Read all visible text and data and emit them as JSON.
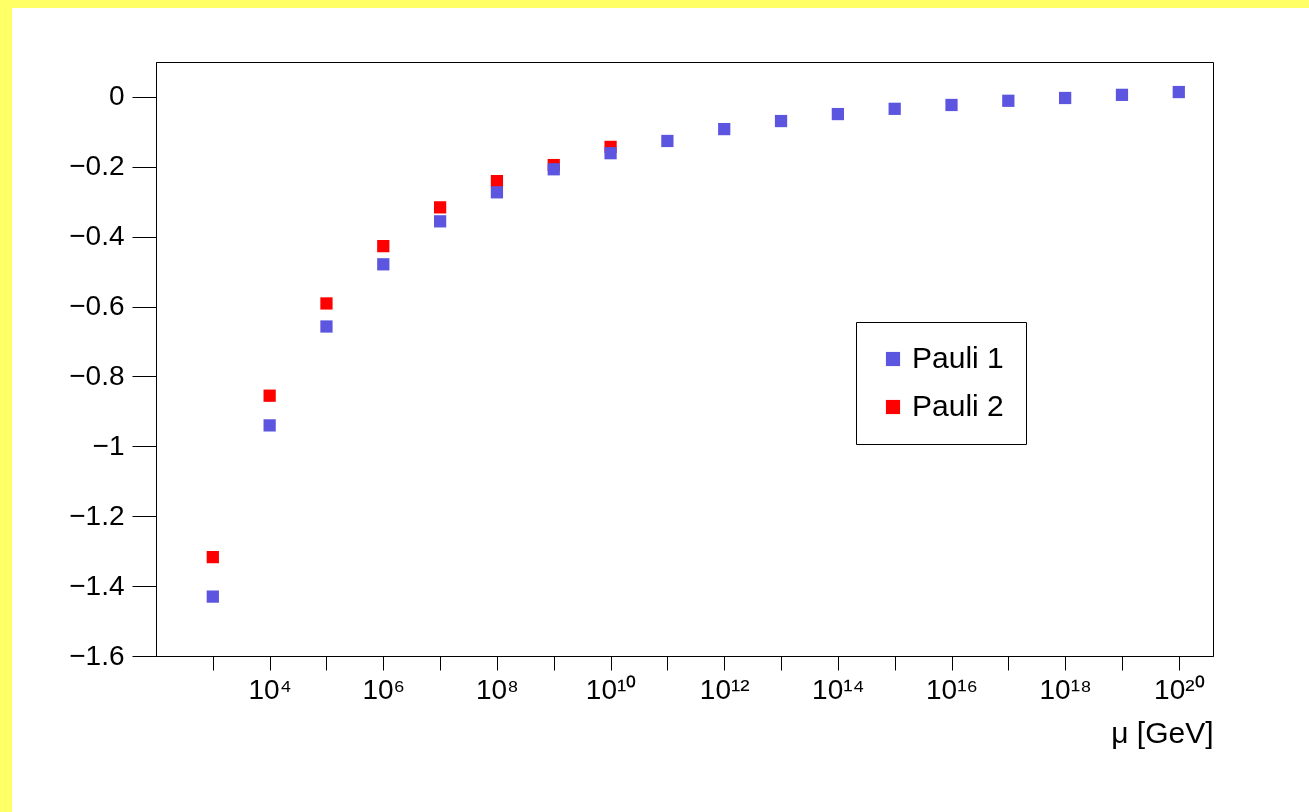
{
  "chart_data": {
    "type": "scatter",
    "xlabel": "μ [GeV]",
    "x": [
      1000.0,
      10000.0,
      100000.0,
      1000000.0,
      10000000.0,
      100000000.0,
      1000000000.0,
      10000000000.0,
      100000000000.0,
      1000000000000.0,
      10000000000000.0,
      100000000000000.0,
      1000000000000000.0,
      1e+16,
      1e+17,
      1e+18,
      1e+19,
      1e+20
    ],
    "series": [
      {
        "name": "Pauli 1",
        "color": "#5b55e0",
        "values": [
          -1.43,
          -0.94,
          -0.657,
          -0.479,
          -0.356,
          -0.273,
          -0.207,
          -0.161,
          -0.126,
          -0.092,
          -0.069,
          -0.049,
          -0.034,
          -0.023,
          -0.011,
          -0.003,
          0.006,
          0.014
        ]
      },
      {
        "name": "Pauli 2",
        "color": "#ff0000",
        "values": [
          -1.317,
          -0.855,
          -0.591,
          -0.427,
          -0.316,
          -0.241,
          -0.195,
          -0.143,
          null,
          null,
          null,
          null,
          null,
          null,
          null,
          null,
          null,
          null
        ]
      }
    ],
    "log": "x",
    "xlim": [
      100,
      4e+20
    ],
    "xticks": [
      {
        "value": 1000.0,
        "label": null
      },
      {
        "value": 10000.0,
        "label": "10⁴"
      },
      {
        "value": 100000.0,
        "label": null
      },
      {
        "value": 1000000.0,
        "label": "10⁶"
      },
      {
        "value": 10000000.0,
        "label": null
      },
      {
        "value": 100000000.0,
        "label": "10⁸"
      },
      {
        "value": 1000000000.0,
        "label": null
      },
      {
        "value": 10000000000.0,
        "label": "10¹⁰"
      },
      {
        "value": 100000000000.0,
        "label": null
      },
      {
        "value": 1000000000000.0,
        "label": "10¹²"
      },
      {
        "value": 10000000000000.0,
        "label": null
      },
      {
        "value": 100000000000000.0,
        "label": "10¹⁴"
      },
      {
        "value": 1000000000000000.0,
        "label": null
      },
      {
        "value": 1e+16,
        "label": "10¹⁶"
      },
      {
        "value": 1e+17,
        "label": null
      },
      {
        "value": 1e+18,
        "label": "10¹⁸"
      },
      {
        "value": 1e+19,
        "label": null
      },
      {
        "value": 1e+20,
        "label": "10²⁰"
      }
    ],
    "ylim": [
      -1.6,
      0.1
    ],
    "yticks": [
      {
        "value": -1.6,
        "label": "−1.6"
      },
      {
        "value": -1.4,
        "label": "−1.4"
      },
      {
        "value": -1.2,
        "label": "−1.2"
      },
      {
        "value": -1,
        "label": "−1"
      },
      {
        "value": -0.8,
        "label": "−0.8"
      },
      {
        "value": -0.6,
        "label": "−0.6"
      },
      {
        "value": -0.4,
        "label": "−0.4"
      },
      {
        "value": -0.2,
        "label": "−0.2"
      },
      0
    ],
    "grid": false,
    "legend": "right",
    "marker": "square"
  }
}
